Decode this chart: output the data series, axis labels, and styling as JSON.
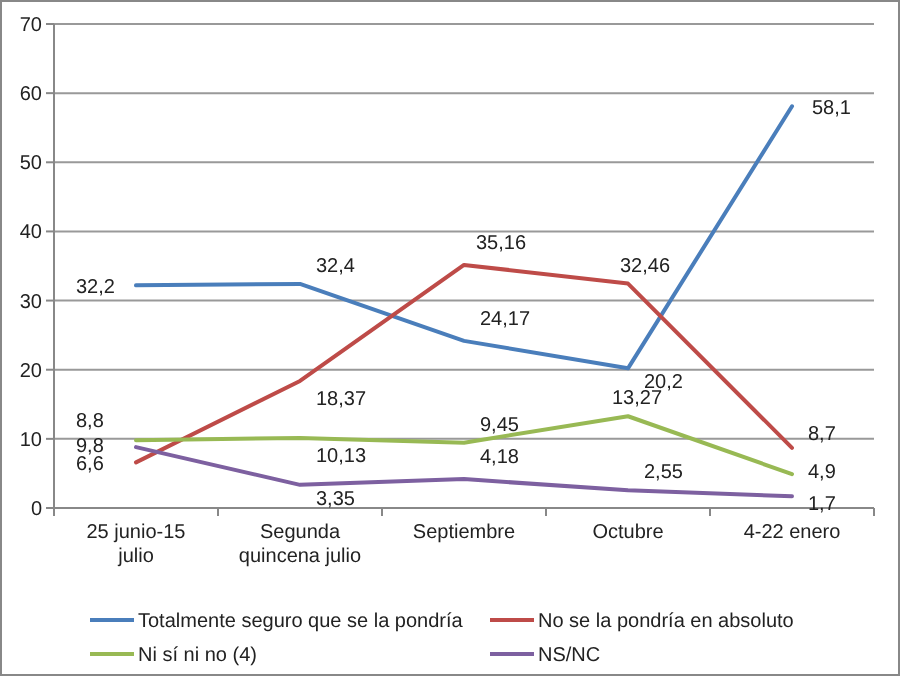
{
  "chart_data": {
    "type": "line",
    "categories": [
      "25 junio-15 julio",
      "Segunda quincena julio",
      "Septiembre",
      "Octubre",
      "4-22 enero"
    ],
    "series": [
      {
        "name": "Totalmente seguro que se la pondría",
        "color": "#4a7ebb",
        "values": [
          32.2,
          32.4,
          24.17,
          20.2,
          58.1
        ],
        "value_labels": [
          "32,2",
          "32,4",
          "24,17",
          "20,2",
          "58,1"
        ]
      },
      {
        "name": "No se la pondría en absoluto",
        "color": "#be4b48",
        "values": [
          6.6,
          18.37,
          35.16,
          32.46,
          8.7
        ],
        "value_labels": [
          "6,6",
          "18,37",
          "35,16",
          "32,46",
          "8,7"
        ]
      },
      {
        "name": "Ni sí ni no (4)",
        "color": "#98b954",
        "values": [
          9.8,
          10.13,
          9.45,
          13.27,
          4.9
        ],
        "value_labels": [
          "9,8",
          "10,13",
          "9,45",
          "13,27",
          "4,9"
        ]
      },
      {
        "name": "NS/NC",
        "color": "#7d60a0",
        "values": [
          8.8,
          3.35,
          4.18,
          2.55,
          1.7
        ],
        "value_labels": [
          "8,8",
          "3,35",
          "4,18",
          "2,55",
          "1,7"
        ]
      }
    ],
    "ylim": [
      0,
      70
    ],
    "yticks": [
      0,
      10,
      20,
      30,
      40,
      50,
      60,
      70
    ],
    "grid": "y",
    "legend": "bottom",
    "marker": "none"
  }
}
